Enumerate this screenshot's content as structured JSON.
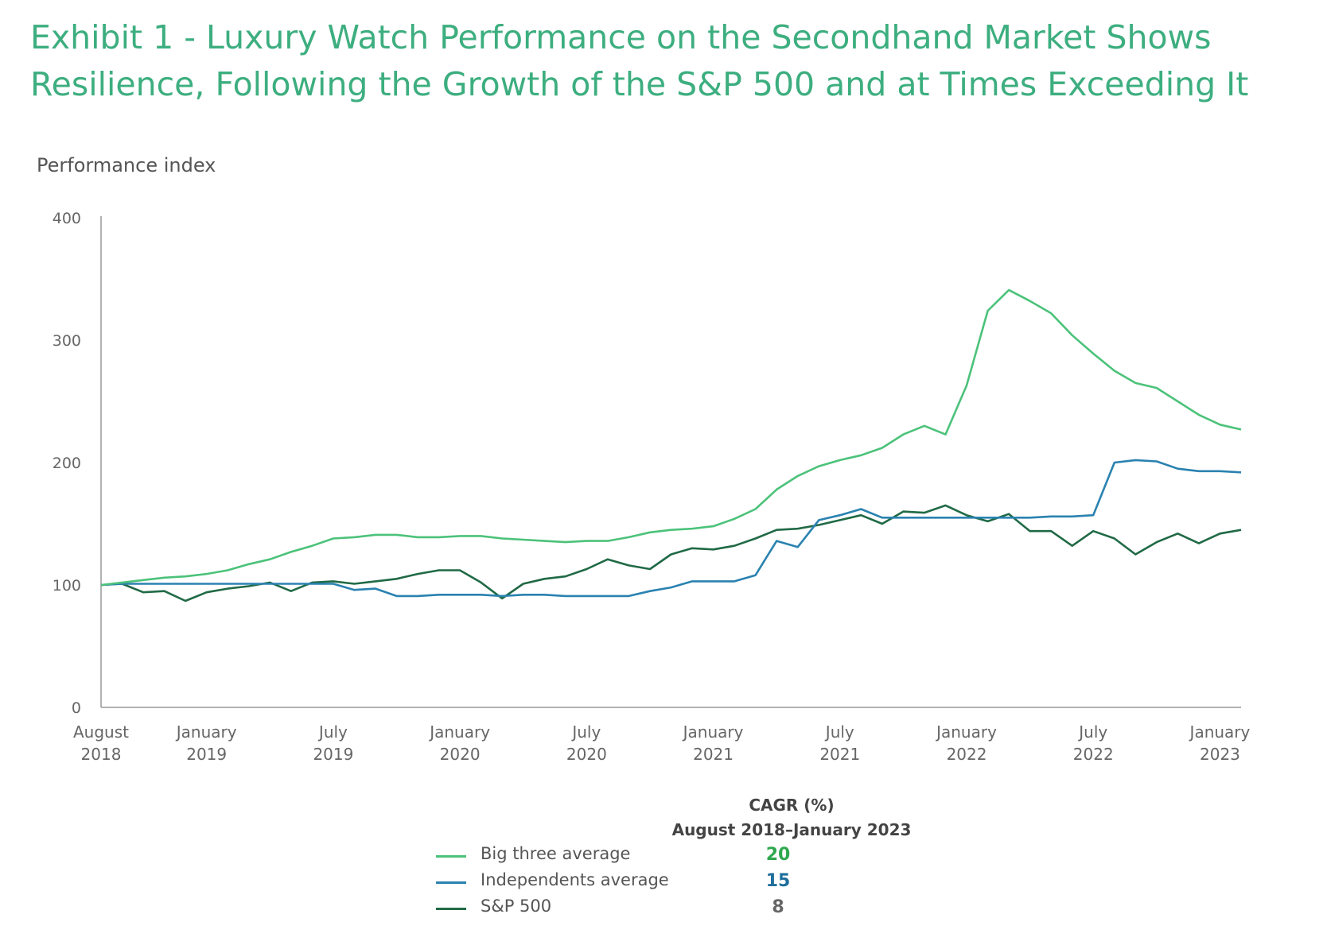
{
  "title_line1": "Exhibit 1 - Luxury Watch Performance on the Secondhand Market Shows",
  "title_line2": "Resilience, Following the Growth of the S&P 500 and at Times Exceeding It",
  "chart_data": {
    "type": "line",
    "ylabel": "Performance index",
    "ylim": [
      0,
      400
    ],
    "yticks": [
      0,
      100,
      200,
      300,
      400
    ],
    "x_range": [
      "2018-08",
      "2023-02"
    ],
    "xticks": [
      {
        "x": "2018-08",
        "line1": "August",
        "line2": "2018"
      },
      {
        "x": "2019-01",
        "line1": "January",
        "line2": "2019"
      },
      {
        "x": "2019-07",
        "line1": "July",
        "line2": "2019"
      },
      {
        "x": "2020-01",
        "line1": "January",
        "line2": "2020"
      },
      {
        "x": "2020-07",
        "line1": "July",
        "line2": "2020"
      },
      {
        "x": "2021-01",
        "line1": "January",
        "line2": "2021"
      },
      {
        "x": "2021-07",
        "line1": "July",
        "line2": "2021"
      },
      {
        "x": "2022-01",
        "line1": "January",
        "line2": "2022"
      },
      {
        "x": "2022-07",
        "line1": "July",
        "line2": "2022"
      },
      {
        "x": "2023-01",
        "line1": "January",
        "line2": "2023"
      }
    ],
    "grid": false,
    "legend_position": "bottom-center",
    "series": [
      {
        "name": "Big three average",
        "color": "#4cc27a",
        "points": [
          [
            "2018-08",
            100
          ],
          [
            "2018-09",
            102
          ],
          [
            "2018-10",
            104
          ],
          [
            "2018-11",
            106
          ],
          [
            "2018-12",
            107
          ],
          [
            "2019-01",
            109
          ],
          [
            "2019-02",
            112
          ],
          [
            "2019-03",
            117
          ],
          [
            "2019-04",
            121
          ],
          [
            "2019-05",
            127
          ],
          [
            "2019-06",
            132
          ],
          [
            "2019-07",
            138
          ],
          [
            "2019-08",
            139
          ],
          [
            "2019-09",
            141
          ],
          [
            "2019-10",
            141
          ],
          [
            "2019-11",
            139
          ],
          [
            "2019-12",
            139
          ],
          [
            "2020-01",
            140
          ],
          [
            "2020-02",
            140
          ],
          [
            "2020-03",
            138
          ],
          [
            "2020-04",
            137
          ],
          [
            "2020-05",
            136
          ],
          [
            "2020-06",
            135
          ],
          [
            "2020-07",
            136
          ],
          [
            "2020-08",
            136
          ],
          [
            "2020-09",
            139
          ],
          [
            "2020-10",
            143
          ],
          [
            "2020-11",
            145
          ],
          [
            "2020-12",
            146
          ],
          [
            "2021-01",
            148
          ],
          [
            "2021-02",
            154
          ],
          [
            "2021-03",
            162
          ],
          [
            "2021-04",
            178
          ],
          [
            "2021-05",
            189
          ],
          [
            "2021-06",
            197
          ],
          [
            "2021-07",
            202
          ],
          [
            "2021-08",
            206
          ],
          [
            "2021-09",
            212
          ],
          [
            "2021-10",
            223
          ],
          [
            "2021-11",
            230
          ],
          [
            "2021-12",
            223
          ],
          [
            "2022-01",
            263
          ],
          [
            "2022-02",
            324
          ],
          [
            "2022-03",
            341
          ],
          [
            "2022-04",
            332
          ],
          [
            "2022-05",
            322
          ],
          [
            "2022-06",
            304
          ],
          [
            "2022-07",
            289
          ],
          [
            "2022-08",
            275
          ],
          [
            "2022-09",
            265
          ],
          [
            "2022-10",
            261
          ],
          [
            "2022-11",
            250
          ],
          [
            "2022-12",
            239
          ],
          [
            "2023-01",
            231
          ],
          [
            "2023-02",
            227
          ]
        ]
      },
      {
        "name": "Independents average",
        "color": "#2a82b0",
        "points": [
          [
            "2018-08",
            100
          ],
          [
            "2018-09",
            101
          ],
          [
            "2018-10",
            101
          ],
          [
            "2018-11",
            101
          ],
          [
            "2018-12",
            101
          ],
          [
            "2019-01",
            101
          ],
          [
            "2019-02",
            101
          ],
          [
            "2019-03",
            101
          ],
          [
            "2019-04",
            101
          ],
          [
            "2019-05",
            101
          ],
          [
            "2019-06",
            101
          ],
          [
            "2019-07",
            101
          ],
          [
            "2019-08",
            96
          ],
          [
            "2019-09",
            97
          ],
          [
            "2019-10",
            91
          ],
          [
            "2019-11",
            91
          ],
          [
            "2019-12",
            92
          ],
          [
            "2020-01",
            92
          ],
          [
            "2020-02",
            92
          ],
          [
            "2020-03",
            91
          ],
          [
            "2020-04",
            92
          ],
          [
            "2020-05",
            92
          ],
          [
            "2020-06",
            91
          ],
          [
            "2020-07",
            91
          ],
          [
            "2020-08",
            91
          ],
          [
            "2020-09",
            91
          ],
          [
            "2020-10",
            95
          ],
          [
            "2020-11",
            98
          ],
          [
            "2020-12",
            103
          ],
          [
            "2021-01",
            103
          ],
          [
            "2021-02",
            103
          ],
          [
            "2021-03",
            108
          ],
          [
            "2021-04",
            136
          ],
          [
            "2021-05",
            131
          ],
          [
            "2021-06",
            153
          ],
          [
            "2021-07",
            157
          ],
          [
            "2021-08",
            162
          ],
          [
            "2021-09",
            155
          ],
          [
            "2021-10",
            155
          ],
          [
            "2021-11",
            155
          ],
          [
            "2021-12",
            155
          ],
          [
            "2022-01",
            155
          ],
          [
            "2022-02",
            155
          ],
          [
            "2022-03",
            155
          ],
          [
            "2022-04",
            155
          ],
          [
            "2022-05",
            156
          ],
          [
            "2022-06",
            156
          ],
          [
            "2022-07",
            157
          ],
          [
            "2022-08",
            200
          ],
          [
            "2022-09",
            202
          ],
          [
            "2022-10",
            201
          ],
          [
            "2022-11",
            195
          ],
          [
            "2022-12",
            193
          ],
          [
            "2023-01",
            193
          ],
          [
            "2023-02",
            192
          ]
        ]
      },
      {
        "name": "S&P 500",
        "color": "#206a46",
        "points": [
          [
            "2018-08",
            100
          ],
          [
            "2018-09",
            101
          ],
          [
            "2018-10",
            94
          ],
          [
            "2018-11",
            95
          ],
          [
            "2018-12",
            87
          ],
          [
            "2019-01",
            94
          ],
          [
            "2019-02",
            97
          ],
          [
            "2019-03",
            99
          ],
          [
            "2019-04",
            102
          ],
          [
            "2019-05",
            95
          ],
          [
            "2019-06",
            102
          ],
          [
            "2019-07",
            103
          ],
          [
            "2019-08",
            101
          ],
          [
            "2019-09",
            103
          ],
          [
            "2019-10",
            105
          ],
          [
            "2019-11",
            109
          ],
          [
            "2019-12",
            112
          ],
          [
            "2020-01",
            112
          ],
          [
            "2020-02",
            102
          ],
          [
            "2020-03",
            89
          ],
          [
            "2020-04",
            101
          ],
          [
            "2020-05",
            105
          ],
          [
            "2020-06",
            107
          ],
          [
            "2020-07",
            113
          ],
          [
            "2020-08",
            121
          ],
          [
            "2020-09",
            116
          ],
          [
            "2020-10",
            113
          ],
          [
            "2020-11",
            125
          ],
          [
            "2020-12",
            130
          ],
          [
            "2021-01",
            129
          ],
          [
            "2021-02",
            132
          ],
          [
            "2021-03",
            138
          ],
          [
            "2021-04",
            145
          ],
          [
            "2021-05",
            146
          ],
          [
            "2021-06",
            149
          ],
          [
            "2021-07",
            153
          ],
          [
            "2021-08",
            157
          ],
          [
            "2021-09",
            150
          ],
          [
            "2021-10",
            160
          ],
          [
            "2021-11",
            159
          ],
          [
            "2021-12",
            165
          ],
          [
            "2022-01",
            157
          ],
          [
            "2022-02",
            152
          ],
          [
            "2022-03",
            158
          ],
          [
            "2022-04",
            144
          ],
          [
            "2022-05",
            144
          ],
          [
            "2022-06",
            132
          ],
          [
            "2022-07",
            144
          ],
          [
            "2022-08",
            138
          ],
          [
            "2022-09",
            125
          ],
          [
            "2022-10",
            135
          ],
          [
            "2022-11",
            142
          ],
          [
            "2022-12",
            134
          ],
          [
            "2023-01",
            142
          ],
          [
            "2023-02",
            145
          ]
        ]
      }
    ]
  },
  "cagr": {
    "heading_line1": "CAGR (%)",
    "heading_line2": "August 2018–January 2023",
    "rows": [
      {
        "label": "Big three average",
        "value": "20",
        "color": "#4cc27a",
        "value_color": "#2ea84e"
      },
      {
        "label": "Independents average",
        "value": "15",
        "color": "#2a82b0",
        "value_color": "#1f6e9c"
      },
      {
        "label": "S&P 500",
        "value": "8",
        "color": "#206a46",
        "value_color": "#666666"
      }
    ]
  }
}
